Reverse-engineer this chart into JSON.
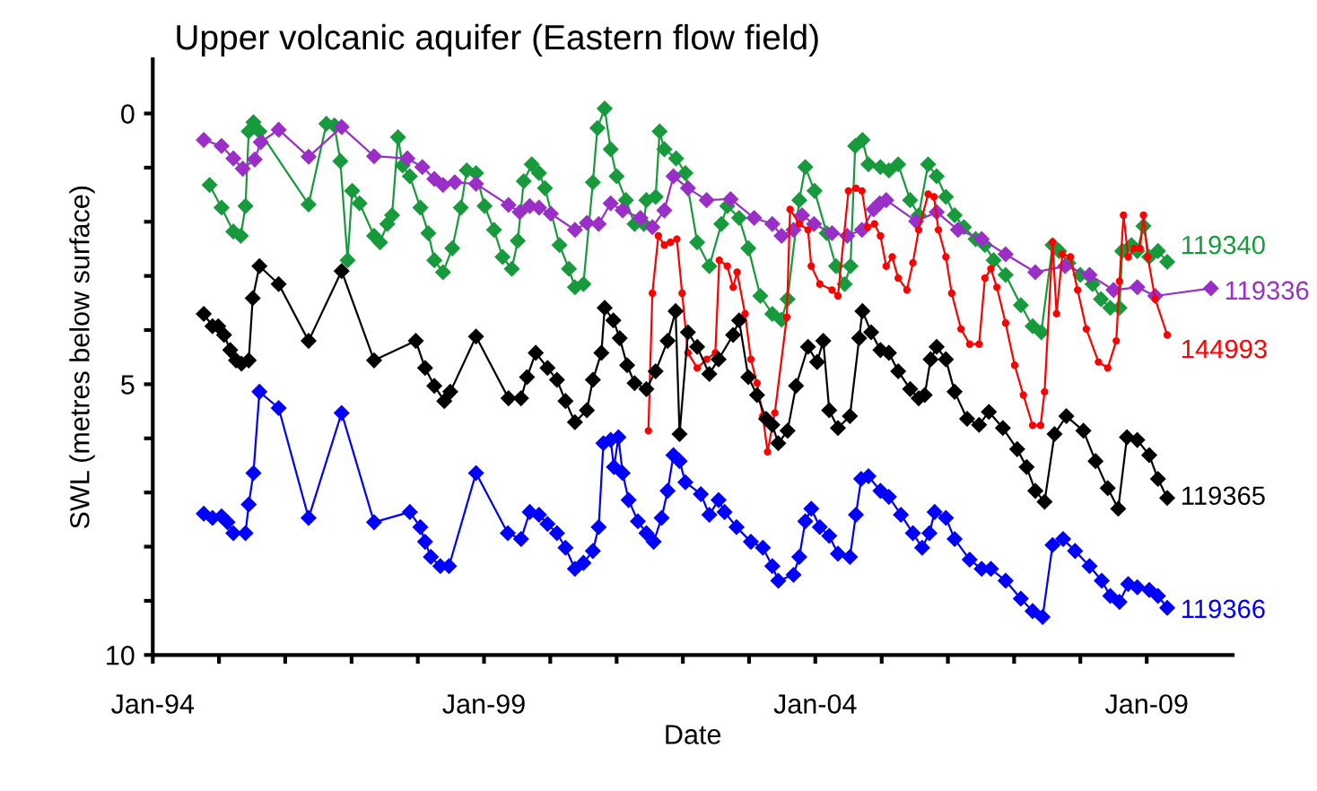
{
  "chart_data": {
    "type": "line",
    "title": "Upper volcanic aquifer (Eastern flow field)",
    "xlabel": "Date",
    "ylabel": "SWL (metres below surface)",
    "xlim": [
      "1994-01-01",
      "2010-04-20"
    ],
    "ylim": [
      10,
      -1
    ],
    "xticks": [
      {
        "value": "1994-01-01",
        "label": "Jan-94"
      },
      {
        "value": "1995-01-01",
        "label": null
      },
      {
        "value": "1996-01-01",
        "label": null
      },
      {
        "value": "1997-01-01",
        "label": null
      },
      {
        "value": "1998-01-01",
        "label": null
      },
      {
        "value": "1999-01-01",
        "label": "Jan-99"
      },
      {
        "value": "2000-01-01",
        "label": null
      },
      {
        "value": "2001-01-01",
        "label": null
      },
      {
        "value": "2002-01-01",
        "label": null
      },
      {
        "value": "2003-01-01",
        "label": null
      },
      {
        "value": "2004-01-01",
        "label": "Jan-04"
      },
      {
        "value": "2005-01-01",
        "label": null
      },
      {
        "value": "2006-01-01",
        "label": null
      },
      {
        "value": "2007-01-01",
        "label": null
      },
      {
        "value": "2008-01-01",
        "label": null
      },
      {
        "value": "2009-01-01",
        "label": "Jan-09"
      }
    ],
    "yticks": [
      0,
      {
        "value": 1,
        "label": null
      },
      {
        "value": 2,
        "label": null
      },
      {
        "value": 3,
        "label": null
      },
      {
        "value": 4,
        "label": null
      },
      5,
      {
        "value": 6,
        "label": null
      },
      {
        "value": 7,
        "label": null
      },
      {
        "value": 8,
        "label": null
      },
      {
        "value": 9,
        "label": null
      },
      10
    ],
    "grid": false,
    "line_style": "solid",
    "series": [
      {
        "name": "119340",
        "color": "#179a3c",
        "marker": "diamond",
        "x": [
          "1994-11-10",
          "1995-01-15",
          "1995-03-21",
          "1995-05-01",
          "1995-05-27",
          "1995-06-14",
          "1995-07-10",
          "1995-08-12",
          "1996-05-09",
          "1996-08-15",
          "1996-09-28",
          "1996-10-31",
          "1996-12-10",
          "1997-01-04",
          "1997-02-14",
          "1997-05-05",
          "1997-06-07",
          "1997-07-17",
          "1997-08-12",
          "1997-09-14",
          "1997-10-09",
          "1997-11-18",
          "1998-01-15",
          "1998-02-28",
          "1998-04-02",
          "1998-05-20",
          "1998-07-10",
          "1998-08-26",
          "1998-09-28",
          "1998-11-18",
          "1999-01-04",
          "1999-02-25",
          "1999-04-13",
          "1999-06-03",
          "1999-07-06",
          "1999-08-08",
          "1999-09-21",
          "1999-10-31",
          "1999-12-03",
          "2000-02-21",
          "2000-04-13",
          "2000-05-16",
          "2000-07-02",
          "2000-08-23",
          "2000-09-17",
          "2000-10-27",
          "2000-11-29",
          "2001-01-01",
          "2001-02-21",
          "2001-04-10",
          "2001-05-31",
          "2001-06-14",
          "2001-08-04",
          "2001-08-26",
          "2001-09-21",
          "2001-11-25",
          "2002-01-15",
          "2002-03-21",
          "2002-05-27",
          "2002-08-01",
          "2002-09-03",
          "2002-11-07",
          "2002-12-28",
          "2003-03-04",
          "2003-05-09",
          "2003-06-29",
          "2003-08-01",
          "2003-10-05",
          "2003-11-07",
          "2003-12-28",
          "2004-03-04",
          "2004-04-24",
          "2004-06-11",
          "2004-07-13",
          "2004-08-08",
          "2004-09-17",
          "2004-10-20",
          "2004-12-25",
          "2005-02-10",
          "2005-04-02",
          "2005-06-07",
          "2005-07-24",
          "2005-09-14",
          "2005-10-31",
          "2005-12-21",
          "2006-02-07",
          "2006-03-30",
          "2006-06-03",
          "2006-07-24",
          "2006-09-10",
          "2006-11-15",
          "2007-02-07",
          "2007-04-13",
          "2007-05-31",
          "2007-08-01",
          "2007-09-06",
          "2007-10-27",
          "2008-01-01",
          "2008-03-08",
          "2008-04-24",
          "2008-06-14",
          "2008-08-04",
          "2008-08-19",
          "2008-10-09",
          "2008-11-10",
          "2008-12-14",
          "2009-01-15",
          "2009-03-04",
          "2009-04-24"
        ],
        "values": [
          1.32,
          1.74,
          2.18,
          2.26,
          1.71,
          0.33,
          0.16,
          0.33,
          1.68,
          0.19,
          0.22,
          0.88,
          2.71,
          1.43,
          1.66,
          2.26,
          2.38,
          2.04,
          1.88,
          0.44,
          0.96,
          1.16,
          1.74,
          2.21,
          2.71,
          2.93,
          2.49,
          1.74,
          1.05,
          1.1,
          1.71,
          2.15,
          2.65,
          2.87,
          2.35,
          1.25,
          0.94,
          1.1,
          1.38,
          2.43,
          2.87,
          3.21,
          3.15,
          1.27,
          0.27,
          -0.09,
          0.66,
          1.16,
          1.6,
          2.04,
          2.04,
          1.6,
          1.54,
          0.33,
          0.66,
          0.83,
          1.1,
          2.38,
          2.82,
          2.04,
          1.71,
          1.93,
          2.49,
          3.37,
          3.7,
          3.81,
          3.43,
          1.6,
          0.99,
          1.43,
          2.21,
          2.82,
          3.15,
          2.82,
          0.6,
          0.49,
          0.94,
          0.99,
          1.05,
          0.94,
          1.6,
          1.88,
          0.94,
          1.16,
          1.54,
          1.88,
          2.1,
          2.32,
          2.43,
          2.71,
          2.98,
          3.54,
          3.93,
          4.04,
          2.43,
          2.54,
          2.76,
          2.98,
          3.15,
          3.43,
          3.59,
          3.59,
          2.54,
          2.43,
          2.54,
          2.08,
          2.65,
          2.54,
          2.74
        ]
      },
      {
        "name": "119336",
        "color": "#9a2fc8",
        "marker": "diamond",
        "x": [
          "1994-10-09",
          "1995-01-15",
          "1995-03-21",
          "1995-05-12",
          "1995-07-17",
          "1995-08-19",
          "1995-11-26",
          "1996-05-09",
          "1996-11-07",
          "1997-05-05",
          "1997-11-04",
          "1998-01-26",
          "1998-04-02",
          "1998-05-20",
          "1998-07-24",
          "1998-11-18",
          "1999-05-16",
          "1999-07-17",
          "1999-09-10",
          "1999-10-31",
          "2000-01-04",
          "2000-05-16",
          "2000-07-21",
          "2000-09-24",
          "2000-11-29",
          "2001-02-03",
          "2001-05-12",
          "2001-07-17",
          "2001-09-21",
          "2001-11-10",
          "2002-01-29",
          "2002-05-12",
          "2002-09-21",
          "2003-01-29",
          "2003-05-09",
          "2003-06-29",
          "2003-09-03",
          "2003-10-20",
          "2003-12-25",
          "2004-04-02",
          "2004-06-25",
          "2004-09-14",
          "2004-11-18",
          "2004-12-21",
          "2005-01-26",
          "2005-07-10",
          "2005-10-31",
          "2006-02-25",
          "2006-07-06",
          "2006-11-15",
          "2007-04-28",
          "2007-10-09",
          "2008-02-21",
          "2008-07-02",
          "2008-11-10",
          "2009-02-17",
          "2009-12-21"
        ],
        "values": [
          0.49,
          0.6,
          0.83,
          1.02,
          0.85,
          0.53,
          0.3,
          0.8,
          0.25,
          0.79,
          0.83,
          0.99,
          1.21,
          1.32,
          1.27,
          1.3,
          1.69,
          1.82,
          1.71,
          1.74,
          1.85,
          2.15,
          2.02,
          2.04,
          1.66,
          1.79,
          1.93,
          2.1,
          1.79,
          1.16,
          1.38,
          1.6,
          1.58,
          1.93,
          2.04,
          2.26,
          2.15,
          1.88,
          2.04,
          2.21,
          2.26,
          2.15,
          1.77,
          1.66,
          1.6,
          1.99,
          1.82,
          2.15,
          2.32,
          2.6,
          2.93,
          2.82,
          2.98,
          3.26,
          3.21,
          3.37,
          3.23
        ]
      },
      {
        "name": "144993",
        "color": "#ff0000",
        "marker": "circle",
        "x": [
          "2001-06-25",
          "2001-07-17",
          "2001-08-19",
          "2001-09-21",
          "2001-10-24",
          "2001-11-29",
          "2001-12-28",
          "2002-01-29",
          "2002-03-21",
          "2002-05-12",
          "2002-06-29",
          "2002-07-21",
          "2002-09-03",
          "2002-10-05",
          "2002-10-27",
          "2002-12-10",
          "2003-01-11",
          "2003-02-14",
          "2003-03-18",
          "2003-04-13",
          "2003-05-23",
          "2003-07-28",
          "2003-08-15",
          "2003-10-05",
          "2003-11-22",
          "2003-12-10",
          "2004-01-26",
          "2004-04-02",
          "2004-05-05",
          "2004-07-02",
          "2004-08-12",
          "2004-09-14",
          "2004-10-16",
          "2004-11-22",
          "2004-12-25",
          "2005-01-26",
          "2005-02-28",
          "2005-04-02",
          "2005-05-20",
          "2005-06-22",
          "2005-07-24",
          "2005-09-14",
          "2005-10-16",
          "2005-11-10",
          "2005-12-21",
          "2006-01-22",
          "2006-03-14",
          "2006-05-01",
          "2006-06-22",
          "2006-07-24",
          "2006-08-26",
          "2006-09-28",
          "2006-11-15",
          "2007-01-04",
          "2007-02-21",
          "2007-04-13",
          "2007-05-27",
          "2007-06-18",
          "2007-08-01",
          "2007-08-23",
          "2007-09-24",
          "2007-11-07",
          "2007-12-17",
          "2008-02-03",
          "2008-04-10",
          "2008-05-31",
          "2008-07-17",
          "2008-08-04",
          "2008-08-26",
          "2008-09-21",
          "2008-10-24",
          "2008-11-25",
          "2008-12-14",
          "2009-01-07",
          "2009-02-17",
          "2009-04-24"
        ],
        "values": [
          5.86,
          3.32,
          2.26,
          2.43,
          2.38,
          2.32,
          3.32,
          4.42,
          4.7,
          4.54,
          4.42,
          2.71,
          2.82,
          3.21,
          2.93,
          3.7,
          4.54,
          4.98,
          5.59,
          6.25,
          5.53,
          3.76,
          1.77,
          2.04,
          2.15,
          2.82,
          3.15,
          3.26,
          3.37,
          1.43,
          1.38,
          1.43,
          2.1,
          2.04,
          2.26,
          2.82,
          2.65,
          3.04,
          3.26,
          2.76,
          2.15,
          1.49,
          1.54,
          2.15,
          2.65,
          3.32,
          3.98,
          4.26,
          4.26,
          3.04,
          2.87,
          3.21,
          3.87,
          4.65,
          5.2,
          5.76,
          5.76,
          5.14,
          2.38,
          3.7,
          2.6,
          2.65,
          3.26,
          3.98,
          4.59,
          4.7,
          4.2,
          3.1,
          1.88,
          2.65,
          2.49,
          2.49,
          1.88,
          2.65,
          3.43,
          4.09
        ]
      },
      {
        "name": "119365",
        "color": "#000000",
        "marker": "diamond",
        "x": [
          "1994-10-09",
          "1994-11-26",
          "1994-12-28",
          "1995-01-29",
          "1995-03-04",
          "1995-04-05",
          "1995-05-05",
          "1995-06-14",
          "1995-07-06",
          "1995-08-12",
          "1995-11-26",
          "1996-05-09",
          "1996-11-07",
          "1997-05-05",
          "1997-12-21",
          "1998-02-10",
          "1998-04-02",
          "1998-05-27",
          "1998-06-29",
          "1998-11-18",
          "1999-05-16",
          "1999-07-24",
          "1999-08-26",
          "1999-10-13",
          "1999-12-17",
          "2000-02-07",
          "2000-03-25",
          "2000-05-16",
          "2000-07-21",
          "2000-08-23",
          "2000-10-09",
          "2000-10-27",
          "2000-12-14",
          "2001-01-18",
          "2001-02-28",
          "2001-04-10",
          "2001-06-14",
          "2001-08-04",
          "2001-10-09",
          "2001-11-22",
          "2001-12-14",
          "2002-01-29",
          "2002-03-21",
          "2002-05-27",
          "2002-07-17",
          "2002-10-05",
          "2002-11-07",
          "2002-12-28",
          "2003-02-14",
          "2003-04-05",
          "2003-05-09",
          "2003-06-11",
          "2003-08-01",
          "2003-09-17",
          "2003-11-22",
          "2004-01-11",
          "2004-02-14",
          "2004-03-18",
          "2004-05-05",
          "2004-07-10",
          "2004-08-30",
          "2004-09-17",
          "2004-11-04",
          "2004-12-25",
          "2005-02-10",
          "2005-04-02",
          "2005-06-07",
          "2005-07-24",
          "2005-08-26",
          "2005-09-28",
          "2005-10-31",
          "2005-12-21",
          "2006-02-07",
          "2006-04-17",
          "2006-06-22",
          "2006-08-15",
          "2006-10-31",
          "2007-01-18",
          "2007-03-11",
          "2007-04-28",
          "2007-06-18",
          "2007-08-12",
          "2007-10-16",
          "2008-01-18",
          "2008-03-25",
          "2008-05-31",
          "2008-07-28",
          "2008-09-14",
          "2008-11-10",
          "2009-01-15",
          "2009-03-04",
          "2009-04-24"
        ],
        "values": [
          3.7,
          3.93,
          3.93,
          4.09,
          4.37,
          4.56,
          4.62,
          4.56,
          3.41,
          2.82,
          3.15,
          4.2,
          2.91,
          4.56,
          4.2,
          4.7,
          5.03,
          5.31,
          5.14,
          4.12,
          5.26,
          5.26,
          4.87,
          4.42,
          4.7,
          4.92,
          5.31,
          5.7,
          5.48,
          4.92,
          4.42,
          3.59,
          3.82,
          4.15,
          4.65,
          4.98,
          5.09,
          4.76,
          4.2,
          3.65,
          5.92,
          4.04,
          4.31,
          4.81,
          4.54,
          4.09,
          3.82,
          4.87,
          5.2,
          5.64,
          5.75,
          6.09,
          5.86,
          5.03,
          4.31,
          4.59,
          4.2,
          5.48,
          5.81,
          5.59,
          4.15,
          3.65,
          4.04,
          4.37,
          4.42,
          4.76,
          5.09,
          5.26,
          5.2,
          4.54,
          4.31,
          4.54,
          5.14,
          5.64,
          5.75,
          5.51,
          5.81,
          6.2,
          6.53,
          6.97,
          7.17,
          5.92,
          5.59,
          5.86,
          6.42,
          6.92,
          7.3,
          5.98,
          6.03,
          6.31,
          6.75,
          7.1
        ]
      },
      {
        "name": "119366",
        "color": "#0000ff",
        "marker": "diamond",
        "x": [
          "1994-10-09",
          "1994-11-26",
          "1995-01-15",
          "1995-02-17",
          "1995-03-21",
          "1995-05-27",
          "1995-06-14",
          "1995-07-10",
          "1995-08-12",
          "1995-11-26",
          "1996-05-09",
          "1996-11-07",
          "1997-05-05",
          "1997-11-18",
          "1998-01-15",
          "1998-02-10",
          "1998-03-14",
          "1998-05-05",
          "1998-06-22",
          "1998-11-18",
          "1999-05-12",
          "1999-07-24",
          "1999-09-10",
          "1999-10-31",
          "1999-12-17",
          "2000-02-07",
          "2000-03-25",
          "2000-05-16",
          "2000-07-02",
          "2000-08-23",
          "2000-09-24",
          "2000-10-20",
          "2000-11-29",
          "2000-12-17",
          "2001-01-11",
          "2001-02-03",
          "2001-03-08",
          "2001-04-28",
          "2001-06-14",
          "2001-07-24",
          "2001-09-06",
          "2001-10-09",
          "2001-11-10",
          "2001-12-14",
          "2002-01-15",
          "2002-04-10",
          "2002-05-27",
          "2002-07-17",
          "2002-08-19",
          "2002-10-24",
          "2003-01-11",
          "2003-03-18",
          "2003-05-09",
          "2003-06-11",
          "2003-09-03",
          "2003-10-05",
          "2003-11-07",
          "2003-12-10",
          "2004-01-26",
          "2004-03-18",
          "2004-05-05",
          "2004-07-10",
          "2004-08-12",
          "2004-09-10",
          "2004-10-20",
          "2004-12-25",
          "2005-02-10",
          "2005-04-17",
          "2005-06-22",
          "2005-08-12",
          "2005-09-21",
          "2005-10-20",
          "2005-12-21",
          "2006-02-07",
          "2006-05-01",
          "2006-07-06",
          "2006-08-26",
          "2006-11-15",
          "2007-02-07",
          "2007-04-13",
          "2007-06-07",
          "2007-08-01",
          "2007-09-28",
          "2007-12-03",
          "2008-02-21",
          "2008-04-28",
          "2008-06-14",
          "2008-08-04",
          "2008-09-21",
          "2008-11-10",
          "2009-01-15",
          "2009-03-04",
          "2009-04-24"
        ],
        "values": [
          7.39,
          7.47,
          7.44,
          7.55,
          7.75,
          7.75,
          7.22,
          6.64,
          5.14,
          5.44,
          7.47,
          5.53,
          7.55,
          7.36,
          7.64,
          7.91,
          8.19,
          8.36,
          8.36,
          6.64,
          7.75,
          7.86,
          7.36,
          7.41,
          7.58,
          7.75,
          8.02,
          8.41,
          8.3,
          8.08,
          7.64,
          6.09,
          6.03,
          6.53,
          5.98,
          6.64,
          7.14,
          7.53,
          7.75,
          7.91,
          7.47,
          6.97,
          6.31,
          6.42,
          6.81,
          7.03,
          7.41,
          7.14,
          7.36,
          7.64,
          7.91,
          8.02,
          8.36,
          8.63,
          8.52,
          8.19,
          7.53,
          7.3,
          7.64,
          7.8,
          8.13,
          8.19,
          7.41,
          6.75,
          6.7,
          6.97,
          7.08,
          7.41,
          7.75,
          8.02,
          7.75,
          7.36,
          7.47,
          7.86,
          8.24,
          8.41,
          8.41,
          8.63,
          8.96,
          9.19,
          9.3,
          7.97,
          7.86,
          8.08,
          8.36,
          8.63,
          8.91,
          9.02,
          8.69,
          8.75,
          8.8,
          8.91,
          9.13
        ]
      }
    ]
  }
}
